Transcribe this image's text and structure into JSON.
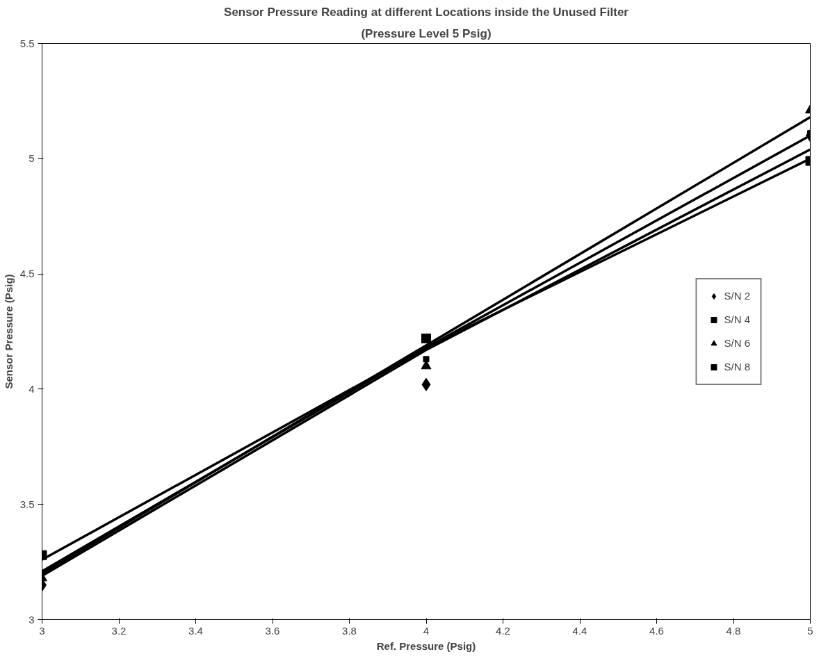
{
  "chart_data": {
    "type": "scatter",
    "title": "Sensor Pressure Reading at different Locations inside the Unused Filter",
    "subtitle": "(Pressure Level 5 Psig)",
    "xlabel": "Ref. Pressure (Psig)",
    "ylabel": "Sensor Pressure (Psig)",
    "x": [
      3,
      4,
      5
    ],
    "series": [
      {
        "name": "S/N 2",
        "color": "#000000",
        "marker": "diamond",
        "values": [
          3.15,
          4.02,
          5.1
        ]
      },
      {
        "name": "S/N 4",
        "color": "#000000",
        "marker": "square",
        "values": [
          null,
          4.13,
          5.11
        ]
      },
      {
        "name": "S/N 6",
        "color": "#000000",
        "marker": "triangle",
        "values": [
          3.18,
          4.1,
          5.21
        ]
      },
      {
        "name": "S/N 8",
        "color": "#000000",
        "marker": "square",
        "values": [
          3.28,
          4.22,
          4.99
        ]
      },
      {
        "type": "line",
        "color": "#000000",
        "values": [
          3.26,
          4.18,
          5.0
        ]
      },
      {
        "type": "line",
        "color": "#000000",
        "values": [
          3.2,
          4.19,
          5.18
        ]
      },
      {
        "type": "line",
        "color": "#000000",
        "values": [
          3.21,
          4.18,
          5.1
        ]
      },
      {
        "type": "line",
        "color": "#000000",
        "values": [
          3.19,
          4.17,
          5.04
        ]
      }
    ],
    "xlim": [
      3,
      5
    ],
    "ylim": [
      3,
      5.5
    ],
    "xticks": [
      3,
      3.2,
      3.4,
      3.6,
      3.8,
      4,
      4.2,
      4.4,
      4.6,
      4.8,
      5
    ],
    "yticks": [
      3,
      3.5,
      4,
      4.5,
      5,
      5.5
    ],
    "grid": false,
    "legend": "right"
  }
}
